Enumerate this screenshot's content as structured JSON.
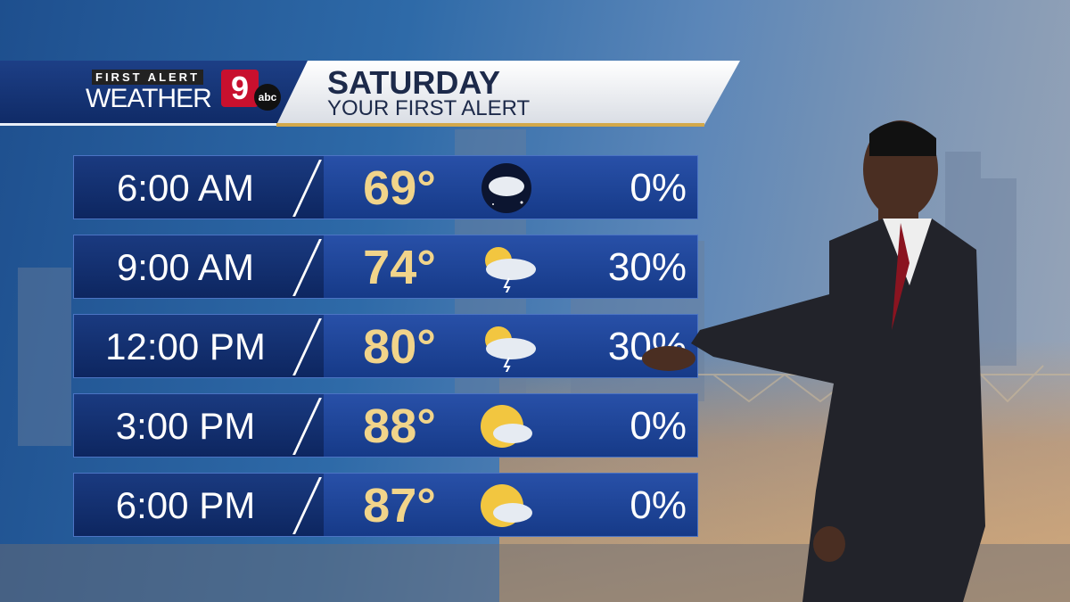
{
  "header": {
    "logo_first_alert": "FIRST ALERT",
    "logo_weather": "WEATHER",
    "logo_channel": "9",
    "logo_network": "abc",
    "title": "SATURDAY",
    "subtitle": "YOUR FIRST ALERT"
  },
  "colors": {
    "temp": "#f1d48a",
    "row_bg": "#1e4598",
    "brand_red": "#c8102e",
    "gold_accent": "#d3a84a"
  },
  "forecast": [
    {
      "time": "6:00 AM",
      "temp": "69°",
      "icon": "night-partly-cloudy-icon",
      "precip": "0%"
    },
    {
      "time": "9:00 AM",
      "temp": "74°",
      "icon": "sun-cloud-thunderstorm-icon",
      "precip": "30%"
    },
    {
      "time": "12:00 PM",
      "temp": "80°",
      "icon": "sun-cloud-thunderstorm-icon",
      "precip": "30%"
    },
    {
      "time": "3:00 PM",
      "temp": "88°",
      "icon": "partly-sunny-icon",
      "precip": "0%"
    },
    {
      "time": "6:00 PM",
      "temp": "87°",
      "icon": "partly-sunny-icon",
      "precip": "0%"
    }
  ]
}
